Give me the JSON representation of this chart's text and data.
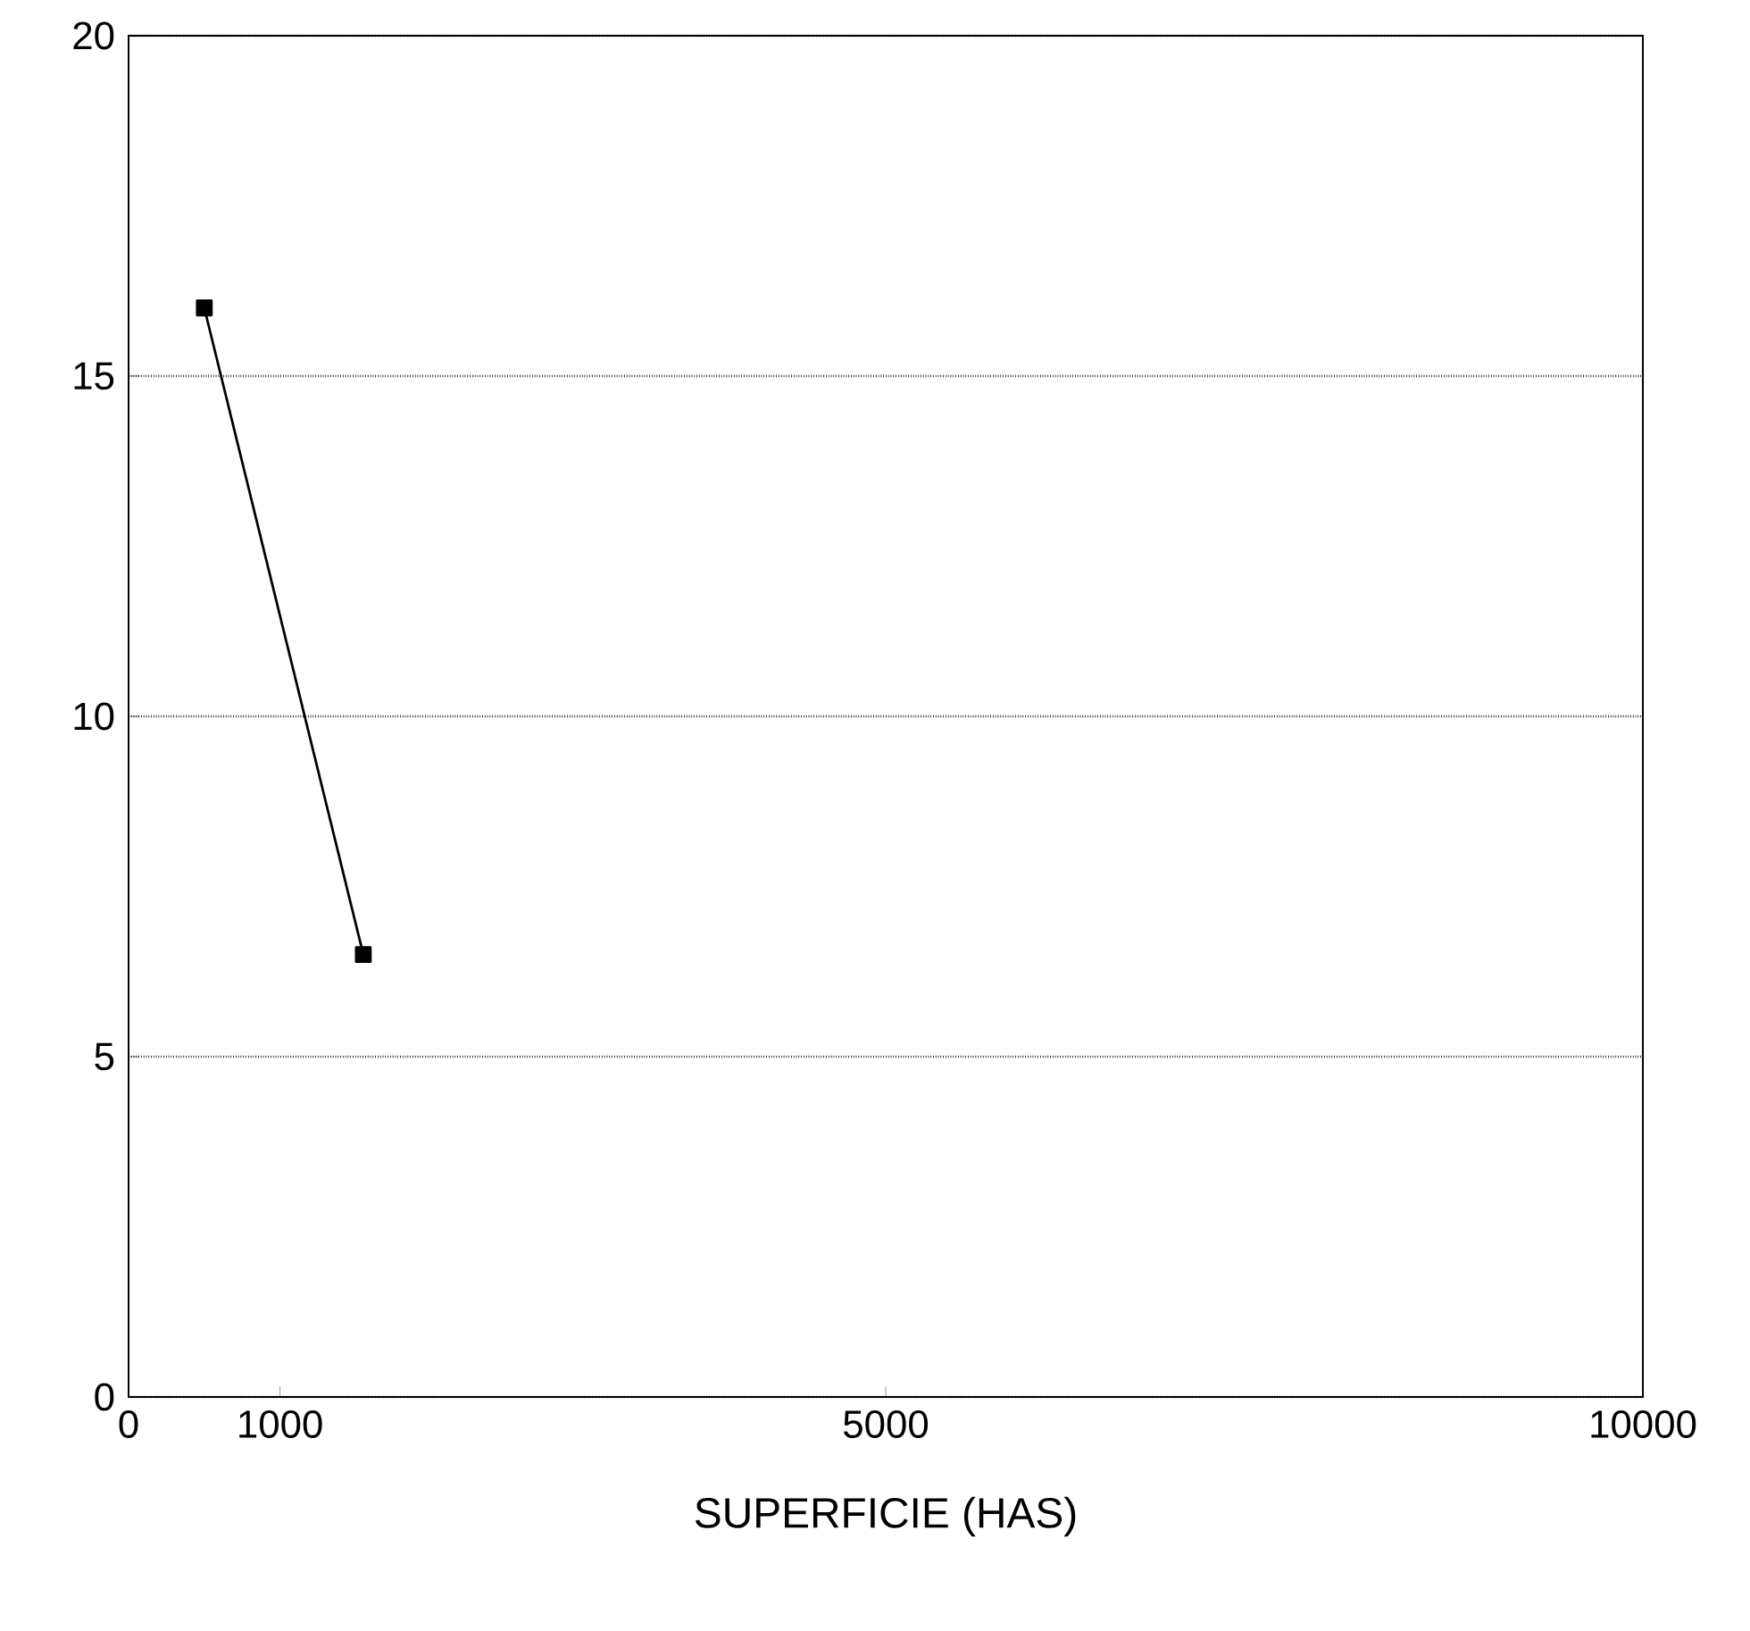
{
  "chart_data": {
    "type": "line",
    "xlabel": "SUPERFICIE (HAS)",
    "x": [
      500,
      1550
    ],
    "values": [
      16,
      6.5
    ],
    "color": "#000000",
    "xlim": [
      0,
      10000
    ],
    "xticks": [
      0,
      1000,
      5000,
      10000
    ],
    "ylim": [
      0,
      20
    ],
    "yticks": [
      0,
      5,
      10,
      15,
      20
    ],
    "grid": "y",
    "marker": "square",
    "line_style": "solid"
  }
}
